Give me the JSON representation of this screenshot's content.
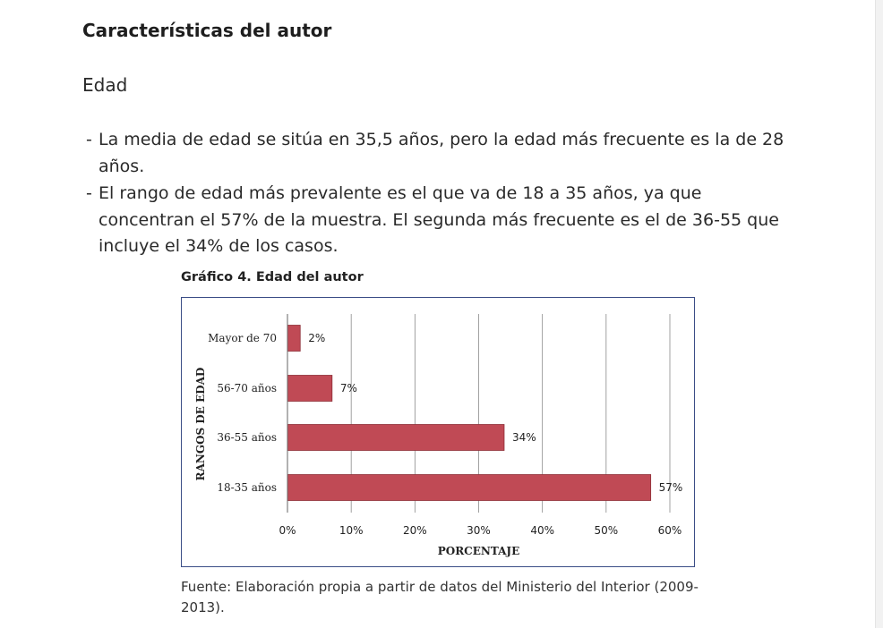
{
  "document": {
    "section_title": "Características del autor",
    "subheading": "Edad",
    "bullets": [
      "La media de edad se sitúa en 35,5 años, pero la edad más frecuente es la de 28 años.",
      "El rango de edad más prevalente es el que va de 18 a 35 años, ya que concentran el 57% de la muestra. El segunda más frecuente es el de 36-55 que incluye el 34% de los casos."
    ],
    "bullet_marker": "-",
    "chart_caption": "Gráfico 4. Edad del autor",
    "source": "Fuente: Elaboración propia a partir de datos del Ministerio del Interior (2009-2013)."
  },
  "chart_data": {
    "type": "bar",
    "orientation": "horizontal",
    "categories": [
      "Mayor de 70",
      "56-70 años",
      "36-55 años",
      "18-35 años"
    ],
    "values": [
      2,
      7,
      34,
      57
    ],
    "data_labels": [
      "2%",
      "7%",
      "34%",
      "57%"
    ],
    "xlabel": "PORCENTAJE",
    "ylabel": "RANGOS DE EDAD",
    "xlim": [
      0,
      60
    ],
    "xticks": [
      0,
      10,
      20,
      30,
      40,
      50,
      60
    ],
    "xtick_labels": [
      "0%",
      "10%",
      "20%",
      "30%",
      "40%",
      "50%",
      "60%"
    ],
    "grid": "vertical",
    "legend": "none",
    "colors": {
      "bar": "#c04a55",
      "bar_edge": "#8e2f38",
      "frame": "#3b4d86",
      "grid": "#8a8a8a"
    }
  }
}
